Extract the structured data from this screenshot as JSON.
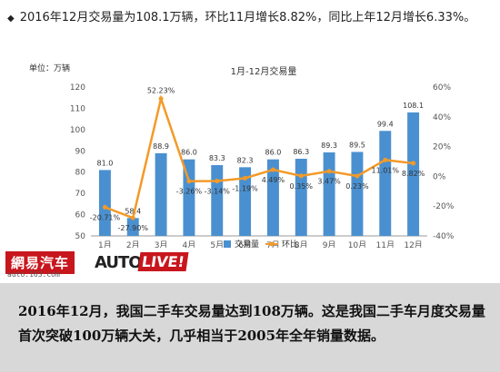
{
  "headline": {
    "bullet": "◆",
    "text": "2016年12月交易量为108.1万辆，环比11月增长8.82%，同比上年12月增长6.33%。"
  },
  "chart_data": {
    "type": "bar",
    "title": "1月-12月交易量",
    "unit_label": "单位：万辆",
    "categories": [
      "1月",
      "2月",
      "3月",
      "4月",
      "5月",
      "6月",
      "7月",
      "8月",
      "9月",
      "10月",
      "11月",
      "12月"
    ],
    "series": [
      {
        "name": "交易量",
        "type": "bar",
        "axis": "left",
        "values": [
          81.0,
          58.4,
          88.9,
          86.0,
          83.3,
          82.3,
          86.0,
          86.3,
          89.3,
          89.5,
          99.4,
          108.1
        ],
        "labels": [
          "81.0",
          "58.4",
          "88.9",
          "86.0",
          "83.3",
          "82.3",
          "86.0",
          "86.3",
          "89.3",
          "89.5",
          "99.4",
          "108.1"
        ]
      },
      {
        "name": "环比",
        "type": "line",
        "axis": "right",
        "values": [
          -20.71,
          -27.9,
          52.23,
          -3.26,
          -3.14,
          -1.19,
          4.49,
          0.35,
          3.47,
          0.23,
          11.01,
          8.82
        ],
        "labels": [
          "-20.71%",
          "-27.90%",
          "52.23%",
          "-3.26%",
          "-3.14%",
          "-1.19%",
          "4.49%",
          "0.35%",
          "3.47%",
          "0.23%",
          "11.01%",
          "8.82%"
        ]
      }
    ],
    "y_left": {
      "min": 50,
      "max": 120,
      "ticks": [
        "50",
        "60",
        "70",
        "80",
        "90",
        "100",
        "110",
        "120"
      ]
    },
    "y_right": {
      "min": -40,
      "max": 60,
      "ticks": [
        "-40%",
        "-20%",
        "0%",
        "20%",
        "40%",
        "60%"
      ]
    },
    "colors": {
      "bar": "#4a90d0",
      "line": "#f39a28",
      "axis_text": "#555555"
    },
    "legend_position": "bottom-center",
    "grid": false
  },
  "watermark": {
    "netease": "網易汽车",
    "netease_url": "auto.163.com",
    "auto": "AUTO",
    "live": "LIVE!"
  },
  "caption": "2016年12月，我国二手车交易量达到108万辆。这是我国二手车月度交易量首次突破100万辆大关，几乎相当于2005年全年销量数据。"
}
